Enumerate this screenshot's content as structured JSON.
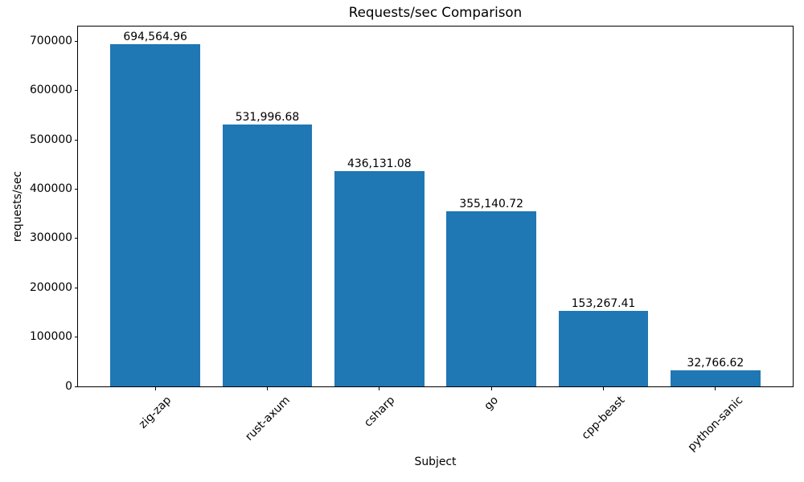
{
  "chart_data": {
    "type": "bar",
    "title": "Requests/sec Comparison",
    "xlabel": "Subject",
    "ylabel": "requests/sec",
    "categories": [
      "zig-zap",
      "rust-axum",
      "csharp",
      "go",
      "cpp-beast",
      "python-sanic"
    ],
    "values": [
      694564.96,
      531996.68,
      436131.08,
      355140.72,
      153267.41,
      32766.62
    ],
    "value_labels": [
      "694,564.96",
      "531,996.68",
      "436,131.08",
      "355,140.72",
      "153,267.41",
      "32,766.62"
    ],
    "bar_color": "#1f77b4",
    "ylim": [
      0,
      730000
    ],
    "yticks": [
      0,
      100000,
      200000,
      300000,
      400000,
      500000,
      600000,
      700000
    ],
    "ytick_labels": [
      "0",
      "100000",
      "200000",
      "300000",
      "400000",
      "500000",
      "600000",
      "700000"
    ],
    "x_tick_rotation": 45,
    "grid": false,
    "legend": null,
    "spines": "full-box"
  }
}
